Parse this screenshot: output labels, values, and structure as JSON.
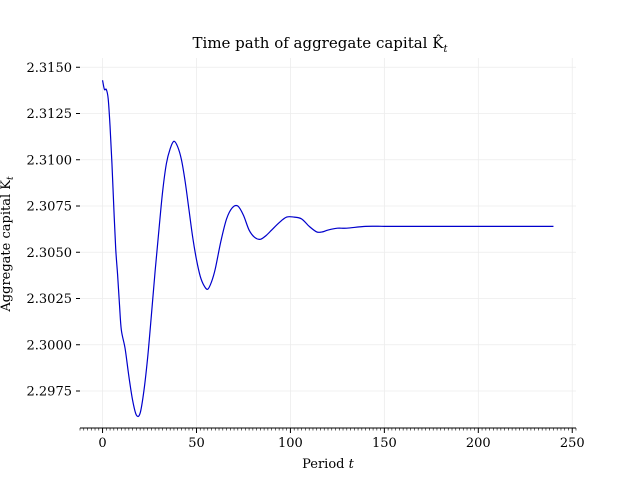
{
  "chart_data": {
    "type": "line",
    "title": "Time path of aggregate capital K̂",
    "title_subscript": "t",
    "xlabel": "Period",
    "xlabel_italic": "t",
    "ylabel": "Aggregate capital K",
    "ylabel_subscript": "t",
    "xlim": [
      -12,
      252
    ],
    "ylim": [
      2.2955,
      2.3155
    ],
    "xticks": [
      0,
      50,
      100,
      150,
      200,
      250
    ],
    "xtick_labels": [
      "0",
      "50",
      "100",
      "150",
      "200",
      "250"
    ],
    "yticks": [
      2.2975,
      2.3,
      2.3025,
      2.305,
      2.3075,
      2.31,
      2.3125,
      2.315
    ],
    "ytick_labels": [
      "2.2975",
      "2.3000",
      "2.3025",
      "2.3050",
      "2.3075",
      "2.3100",
      "2.3125",
      "2.3150"
    ],
    "grid": true,
    "line_color": "#0000cc",
    "series": [
      {
        "x": [
          0,
          1,
          2,
          3,
          4,
          5,
          6,
          7,
          8,
          9,
          10,
          12,
          14,
          16,
          18,
          20,
          22,
          24,
          26,
          28,
          30,
          32,
          34,
          36,
          38,
          40,
          42,
          44,
          46,
          48,
          50,
          52,
          54,
          56,
          58,
          60,
          63,
          66,
          69,
          72,
          75,
          78,
          81,
          84,
          87,
          90,
          94,
          98,
          102,
          106,
          110,
          114,
          117,
          120,
          125,
          130,
          140,
          150,
          160,
          180,
          200,
          220,
          240
        ],
        "y": [
          2.3143,
          2.3138,
          2.3138,
          2.3133,
          2.3118,
          2.3098,
          2.3074,
          2.3052,
          2.3038,
          2.3022,
          2.3008,
          2.2998,
          2.2983,
          2.297,
          2.2962,
          2.2963,
          2.2975,
          2.2993,
          2.3016,
          2.304,
          2.3062,
          2.3083,
          2.3098,
          2.3106,
          2.311,
          2.3107,
          2.31,
          2.3088,
          2.3073,
          2.3058,
          2.3046,
          2.3037,
          2.3032,
          2.303,
          2.3034,
          2.3041,
          2.3056,
          2.3068,
          2.3074,
          2.3075,
          2.307,
          2.3062,
          2.3058,
          2.3057,
          2.3059,
          2.3062,
          2.3066,
          2.3069,
          2.3069,
          2.3068,
          2.3064,
          2.3061,
          2.3061,
          2.3062,
          2.3063,
          2.3063,
          2.3064,
          2.3064,
          2.3064,
          2.3064,
          2.3064,
          2.3064,
          2.3064
        ]
      }
    ]
  }
}
